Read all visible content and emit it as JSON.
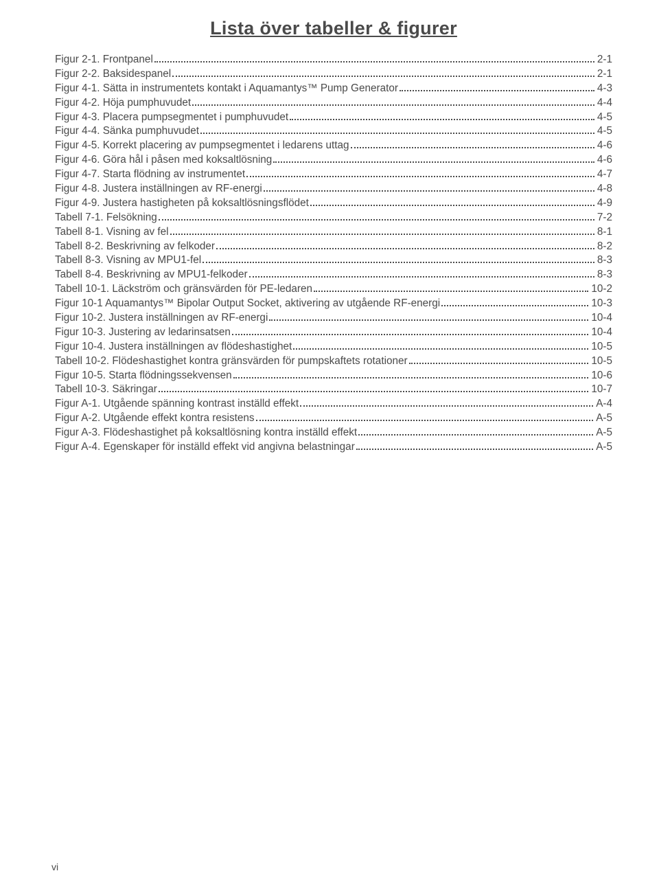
{
  "title": "Lista över tabeller & figurer",
  "footer": "vi",
  "text_color": "#4a4a4a",
  "background_color": "#ffffff",
  "font_family": "Arial, Helvetica, sans-serif",
  "title_fontsize": 27,
  "body_fontsize": 15.3,
  "entries": [
    {
      "label": "Figur 2-1. Frontpanel",
      "page": "2-1"
    },
    {
      "label": "Figur 2-2. Baksidespanel",
      "page": "2-1"
    },
    {
      "label": "Figur 4-1. Sätta in instrumentets kontakt i Aquamantys™ Pump Generator",
      "page": "4-3"
    },
    {
      "label": "Figur 4-2. Höja pumphuvudet",
      "page": "4-4"
    },
    {
      "label": "Figur 4-3. Placera pumpsegmentet i pumphuvudet",
      "page": "4-5"
    },
    {
      "label": "Figur 4-4. Sänka pumphuvudet",
      "page": "4-5"
    },
    {
      "label": "Figur 4-5. Korrekt placering av pumpsegmentet i ledarens uttag",
      "page": "4-6"
    },
    {
      "label": "Figur 4-6. Göra hål i påsen med koksaltlösning",
      "page": "4-6"
    },
    {
      "label": "Figur 4-7. Starta flödning av instrumentet",
      "page": "4-7"
    },
    {
      "label": "Figur 4-8. Justera inställningen av RF-energi",
      "page": "4-8"
    },
    {
      "label": "Figur 4-9. Justera hastigheten på koksaltlösningsflödet",
      "page": "4-9"
    },
    {
      "label": "Tabell 7-1. Felsökning",
      "page": "7-2"
    },
    {
      "label": "Tabell 8-1. Visning av fel",
      "page": "8-1"
    },
    {
      "label": "Tabell 8-2. Beskrivning av felkoder",
      "page": "8-2"
    },
    {
      "label": "Tabell 8-3. Visning av MPU1-fel",
      "page": "8-3"
    },
    {
      "label": "Tabell 8-4. Beskrivning av MPU1-felkoder",
      "page": "8-3"
    },
    {
      "label": "Tabell 10-1. Läckström och gränsvärden för PE-ledaren",
      "page": "10-2"
    },
    {
      "label": "Figur 10-1 Aquamantys™ Bipolar Output Socket, aktivering av utgående RF-energi",
      "page": "10-3"
    },
    {
      "label": "Figur 10-2. Justera inställningen av RF-energi",
      "page": "10-4"
    },
    {
      "label": "Figur 10-3. Justering av ledarinsatsen",
      "page": "10-4"
    },
    {
      "label": "Figur 10-4. Justera inställningen av flödeshastighet",
      "page": "10-5"
    },
    {
      "label": "Tabell 10-2. Flödeshastighet kontra gränsvärden för pumpskaftets rotationer",
      "page": "10-5"
    },
    {
      "label": "Figur 10-5. Starta flödningssekvensen",
      "page": "10-6"
    },
    {
      "label": "Tabell 10-3. Säkringar",
      "page": "10-7"
    },
    {
      "label": "Figur A-1. Utgående spänning kontrast inställd effekt",
      "page": "A-4"
    },
    {
      "label": "Figur A-2. Utgående effekt kontra resistens",
      "page": "A-5"
    },
    {
      "label": "Figur A-3. Flödeshastighet på koksaltlösning kontra inställd effekt",
      "page": "A-5"
    },
    {
      "label": "Figur A-4. Egenskaper för inställd effekt vid angivna belastningar",
      "page": "A-5"
    }
  ]
}
